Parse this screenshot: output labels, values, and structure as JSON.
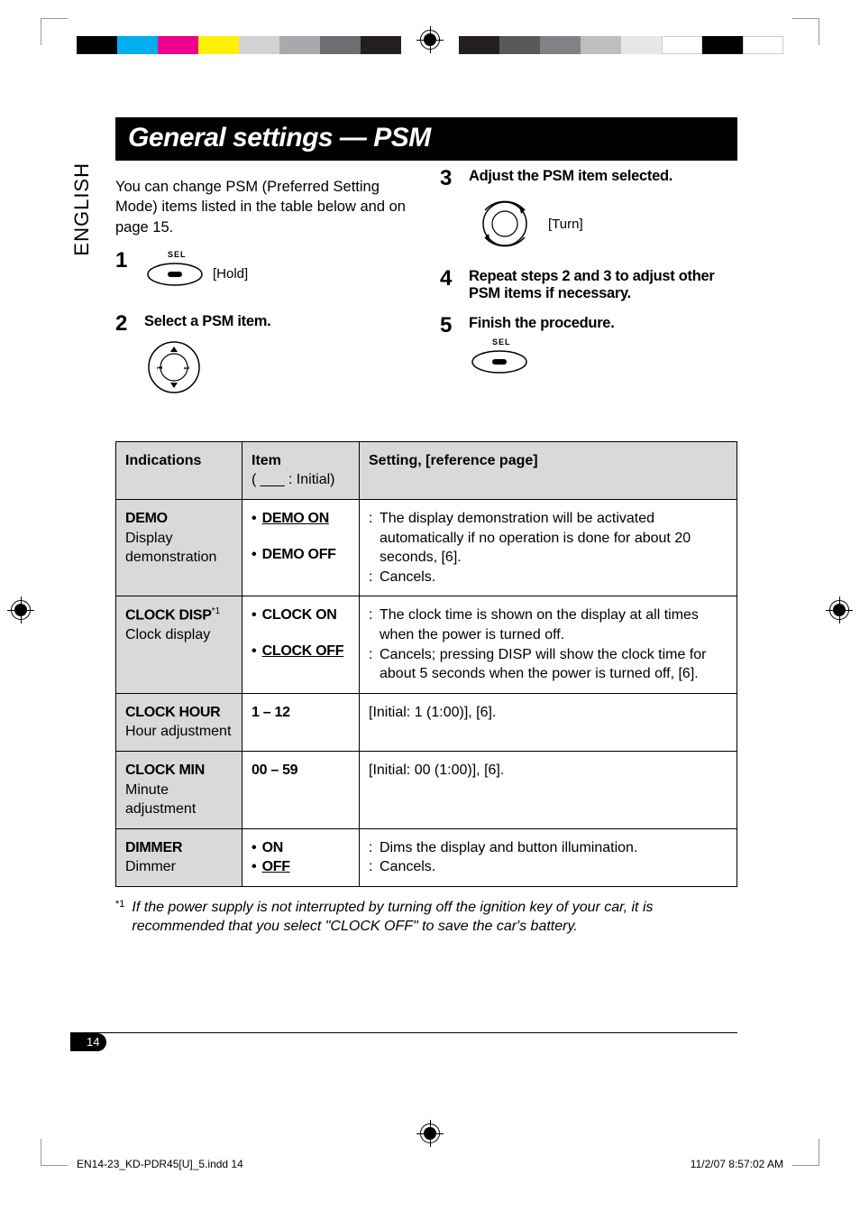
{
  "language_tab": "ENGLISH",
  "title": "General settings — PSM",
  "intro": "You can change PSM (Preferred Setting Mode) items listed in the table below and on page 15.",
  "steps": {
    "s1": {
      "num": "1",
      "hint": "[Hold]",
      "sel": "SEL"
    },
    "s2": {
      "num": "2",
      "title": "Select a PSM item."
    },
    "s3": {
      "num": "3",
      "title": "Adjust the PSM item selected.",
      "hint": "[Turn]"
    },
    "s4": {
      "num": "4",
      "title": "Repeat steps 2 and 3 to adjust other PSM items if necessary."
    },
    "s5": {
      "num": "5",
      "title": "Finish the procedure.",
      "sel": "SEL"
    }
  },
  "table": {
    "headers": {
      "indications": "Indications",
      "item": "Item",
      "item_sub": "( ___ : Initial)",
      "setting": "Setting, [reference page]"
    },
    "rows": {
      "demo": {
        "ind_b": "DEMO",
        "ind_s1": "Display",
        "ind_s2": "demonstration",
        "it1": "DEMO ON",
        "it2": "DEMO OFF",
        "d1": "The display demonstration will be activated automatically if no operation is done for about 20 seconds, [6].",
        "d2": "Cancels."
      },
      "clockdisp": {
        "ind_b": "CLOCK DISP",
        "asterisk": "*1",
        "ind_s1": "Clock display",
        "it1": "CLOCK ON",
        "it2": "CLOCK OFF",
        "d1": "The clock time is shown on the display at all times when the power is turned off.",
        "d2": "Cancels; pressing DISP will show the clock time for about 5 seconds when the power is turned off, [6]."
      },
      "clockhour": {
        "ind_b": "CLOCK HOUR",
        "ind_s1": "Hour adjustment",
        "it": "1 – 12",
        "d": "[Initial: 1 (1:00)], [6]."
      },
      "clockmin": {
        "ind_b": "CLOCK MIN",
        "ind_s1": "Minute adjustment",
        "it": "00 – 59",
        "d": "[Initial: 00 (1:00)], [6]."
      },
      "dimmer": {
        "ind_b": "DIMMER",
        "ind_s1": "Dimmer",
        "it1": "ON",
        "it2": "OFF",
        "d1": "Dims the display and button illumination.",
        "d2": "Cancels."
      }
    }
  },
  "footnote": {
    "mark": "*1",
    "text": "If the power supply is not interrupted by turning off the ignition key of your car, it is recommended that you select \"CLOCK OFF\" to save the car's battery."
  },
  "page_number": "14",
  "footer": {
    "left": "EN14-23_KD-PDR45[U]_5.indd   14",
    "right": "11/2/07   8:57:02 AM"
  },
  "colors": {
    "strip_left": [
      "#000000",
      "#00aeef",
      "#ec008c",
      "#fff200",
      "#d1d3d4",
      "#a7a9ac",
      "#6d6e71",
      "#231f20"
    ],
    "strip_right": [
      "#231f20",
      "#58595b",
      "#808285",
      "#bcbec0",
      "#e6e7e8",
      "#ffffff",
      "#000000",
      "#ffffff"
    ]
  }
}
